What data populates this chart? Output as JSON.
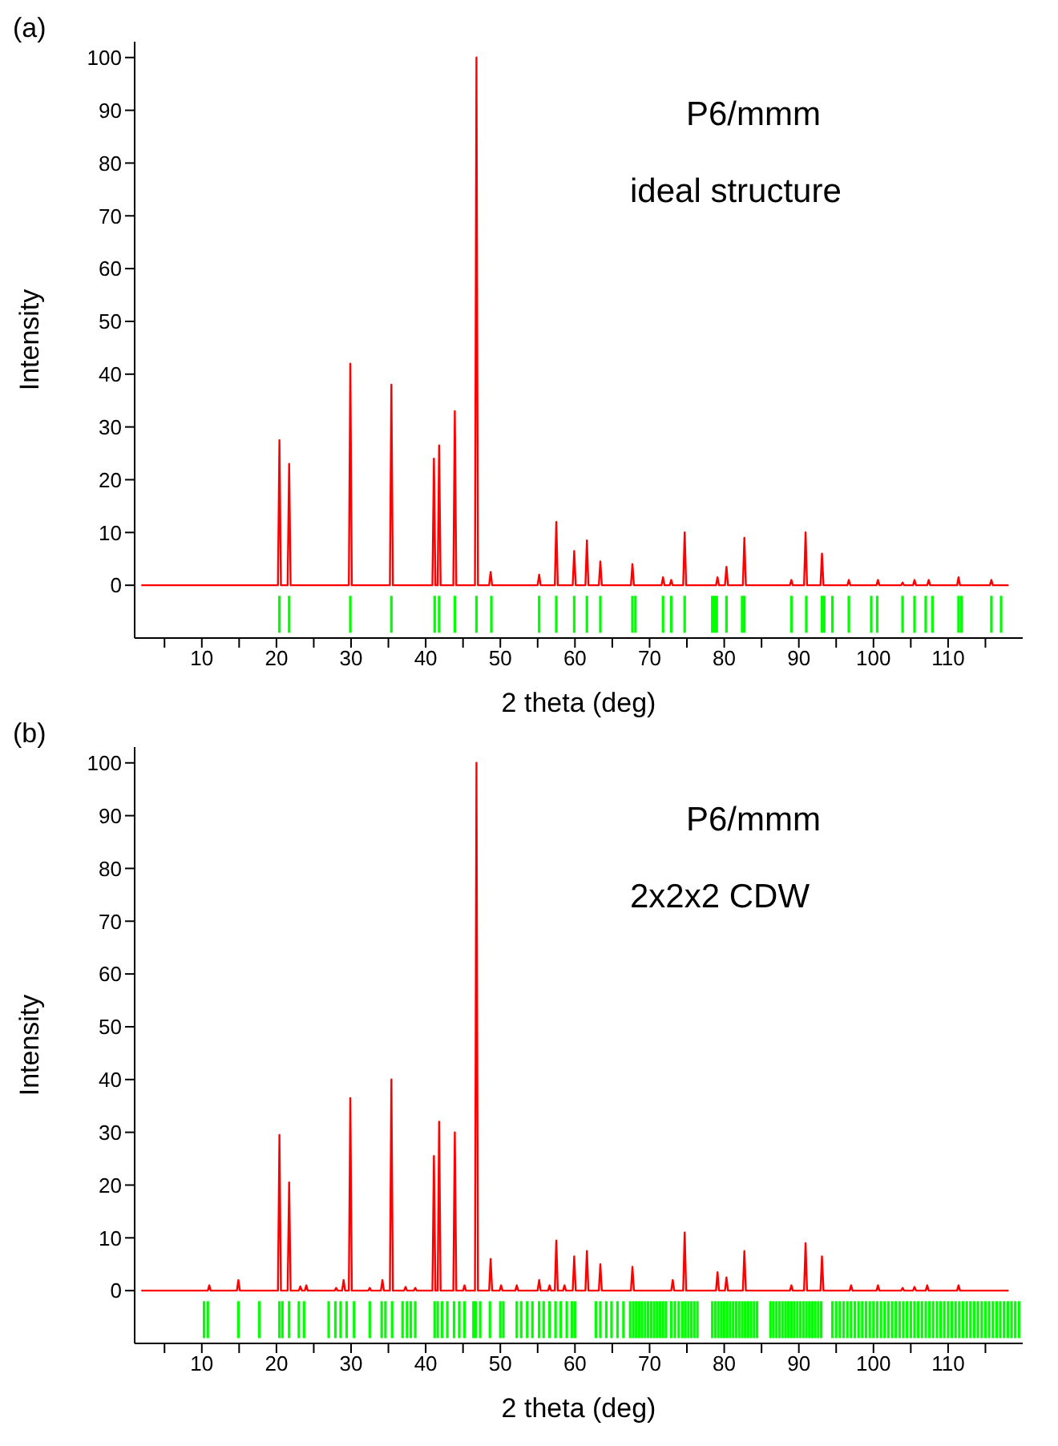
{
  "chart_data": [
    {
      "type": "line",
      "xlabel": "2 theta (deg)",
      "ylabel": "Intensity",
      "annotations": [
        "(a)",
        "P6/mmm",
        "ideal structure"
      ],
      "xlim": [
        1,
        120
      ],
      "ylim": [
        -10,
        103
      ],
      "xticks": [
        {
          "value": 5,
          "label": null
        },
        10,
        {
          "value": 15,
          "label": null
        },
        20,
        {
          "value": 25,
          "label": null
        },
        30,
        {
          "value": 35,
          "label": null
        },
        40,
        {
          "value": 45,
          "label": null
        },
        50,
        {
          "value": 55,
          "label": null
        },
        60,
        {
          "value": 65,
          "label": null
        },
        70,
        {
          "value": 75,
          "label": null
        },
        80,
        {
          "value": 85,
          "label": null
        },
        90,
        {
          "value": 95,
          "label": null
        },
        100,
        {
          "value": 105,
          "label": null
        },
        110,
        {
          "value": 115,
          "label": null
        }
      ],
      "yticks": [
        0,
        10,
        20,
        30,
        40,
        50,
        60,
        70,
        80,
        90,
        100
      ],
      "series": [
        {
          "color": "#ff0000",
          "x": [
            2,
            20.2,
            20.4,
            20.6,
            21.5,
            21.7,
            21.9,
            29.7,
            29.9,
            30.1,
            35.2,
            35.4,
            35.6,
            40.9,
            41.1,
            41.3,
            41.6,
            41.8,
            42.0,
            43.7,
            43.9,
            44.1,
            46.6,
            46.8,
            47.0,
            48.5,
            48.7,
            48.9,
            55.0,
            55.2,
            55.4,
            57.3,
            57.5,
            57.7,
            59.7,
            59.9,
            60.1,
            61.4,
            61.6,
            61.8,
            63.2,
            63.4,
            63.6,
            67.5,
            67.7,
            67.9,
            71.6,
            71.8,
            72.0,
            72.7,
            72.9,
            73.1,
            74.5,
            74.7,
            74.9,
            78.9,
            79.1,
            79.3,
            80.1,
            80.3,
            80.5,
            82.5,
            82.7,
            82.9,
            88.8,
            89.0,
            89.2,
            90.7,
            90.9,
            91.1,
            92.9,
            93.1,
            93.3,
            96.5,
            96.7,
            96.9,
            100.4,
            100.6,
            100.8,
            103.7,
            103.9,
            104.1,
            105.3,
            105.5,
            105.7,
            107.2,
            107.4,
            107.6,
            111.2,
            111.4,
            111.6,
            115.6,
            115.8,
            116.0,
            118
          ],
          "values": [
            0,
            0,
            27.5,
            0,
            0,
            23,
            0,
            0,
            42,
            0,
            0,
            38,
            0,
            0,
            24,
            0,
            0,
            26.5,
            0,
            0,
            33,
            0,
            0,
            100,
            0,
            0,
            2.5,
            0,
            0,
            2,
            0,
            0,
            12,
            0,
            0,
            6.5,
            0,
            0,
            8.5,
            0,
            0,
            4.5,
            0,
            0,
            4,
            0,
            0,
            1.5,
            0,
            0,
            1,
            0,
            0,
            10,
            0,
            0,
            1.5,
            0,
            0,
            3.5,
            0,
            0,
            9,
            0,
            0,
            1,
            0,
            0,
            10,
            0,
            0,
            6,
            0,
            0,
            1,
            0,
            0,
            1,
            0,
            0,
            0.5,
            0,
            0,
            1,
            0,
            0,
            1,
            0,
            0,
            1.5,
            0,
            0,
            1,
            0,
            0
          ]
        },
        {
          "type": "bar",
          "color": "#00ff00",
          "x": [
            20.4,
            21.7,
            29.9,
            35.4,
            41.2,
            41.8,
            43.9,
            46.8,
            48.8,
            55.2,
            57.5,
            59.9,
            61.6,
            63.4,
            67.7,
            68.1,
            71.8,
            72.9,
            74.7,
            78.4,
            78.7,
            79.0,
            80.3,
            82.4,
            82.7,
            89.0,
            91.0,
            93.1,
            93.4,
            94.5,
            96.7,
            99.7,
            100.5,
            103.9,
            105.5,
            107.0,
            107.9,
            111.4,
            111.8,
            115.8,
            117.1
          ],
          "base": [
            -9,
            -9,
            -9,
            -9,
            -9,
            -9,
            -9,
            -9,
            -9,
            -9,
            -9,
            -9,
            -9,
            -9,
            -9,
            -9,
            -9,
            -9,
            -9,
            -9,
            -9,
            -9,
            -9,
            -9,
            -9,
            -9,
            -9,
            -9,
            -9,
            -9,
            -9,
            -9,
            -9,
            -9,
            -9,
            -9,
            -9,
            -9,
            -9,
            -9,
            -9
          ],
          "values": [
            7,
            7,
            7,
            7,
            7,
            7,
            7,
            7,
            7,
            7,
            7,
            7,
            7,
            7,
            7,
            7,
            7,
            7,
            7,
            7,
            7,
            7,
            7,
            7,
            7,
            7,
            7,
            7,
            7,
            7,
            7,
            7,
            7,
            7,
            7,
            7,
            7,
            7,
            7,
            7,
            7
          ]
        }
      ]
    },
    {
      "type": "line",
      "xlabel": "2 theta (deg)",
      "ylabel": "Intensity",
      "annotations": [
        "(b)",
        "P6/mmm",
        "2x2x2 CDW"
      ],
      "xlim": [
        1,
        120
      ],
      "ylim": [
        -10,
        103
      ],
      "xticks": [
        {
          "value": 5,
          "label": null
        },
        10,
        {
          "value": 15,
          "label": null
        },
        20,
        {
          "value": 25,
          "label": null
        },
        30,
        {
          "value": 35,
          "label": null
        },
        40,
        {
          "value": 45,
          "label": null
        },
        50,
        {
          "value": 55,
          "label": null
        },
        60,
        {
          "value": 65,
          "label": null
        },
        70,
        {
          "value": 75,
          "label": null
        },
        80,
        {
          "value": 85,
          "label": null
        },
        90,
        {
          "value": 95,
          "label": null
        },
        100,
        {
          "value": 105,
          "label": null
        },
        110,
        {
          "value": 115,
          "label": null
        }
      ],
      "yticks": [
        0,
        10,
        20,
        30,
        40,
        50,
        60,
        70,
        80,
        90,
        100
      ],
      "series": [
        {
          "color": "#ff0000",
          "x": [
            2,
            10.8,
            11.0,
            11.2,
            14.7,
            14.9,
            15.1,
            20.2,
            20.4,
            20.6,
            21.5,
            21.7,
            21.9,
            23.0,
            23.2,
            23.4,
            23.8,
            24.0,
            24.2,
            27.8,
            28.0,
            28.2,
            28.8,
            29.0,
            29.2,
            29.7,
            29.9,
            30.1,
            32.3,
            32.5,
            32.7,
            34.0,
            34.2,
            34.4,
            35.2,
            35.4,
            35.6,
            37.1,
            37.3,
            37.5,
            38.4,
            38.6,
            38.8,
            40.9,
            41.1,
            41.3,
            41.6,
            41.8,
            42.0,
            43.7,
            43.9,
            44.1,
            45.0,
            45.2,
            45.4,
            46.6,
            46.8,
            47.0,
            48.5,
            48.7,
            48.9,
            49.9,
            50.1,
            50.3,
            52.0,
            52.2,
            52.4,
            55.0,
            55.2,
            55.4,
            56.4,
            56.6,
            56.8,
            57.3,
            57.5,
            57.7,
            58.4,
            58.6,
            58.8,
            59.7,
            59.9,
            60.1,
            61.4,
            61.6,
            61.8,
            63.2,
            63.4,
            63.6,
            67.5,
            67.7,
            67.9,
            72.9,
            73.1,
            73.3,
            74.5,
            74.7,
            74.9,
            78.9,
            79.1,
            79.3,
            80.1,
            80.3,
            80.5,
            82.5,
            82.7,
            82.9,
            88.8,
            89.0,
            89.2,
            90.7,
            90.9,
            91.1,
            92.9,
            93.1,
            93.3,
            96.8,
            97.0,
            97.2,
            100.4,
            100.6,
            100.8,
            103.7,
            103.9,
            104.1,
            105.3,
            105.5,
            105.7,
            107.0,
            107.2,
            107.4,
            111.2,
            111.4,
            111.6,
            118
          ],
          "values": [
            0,
            0,
            1,
            0,
            0,
            2,
            0,
            0,
            29.5,
            0,
            0,
            20.5,
            0,
            0,
            0.8,
            0,
            0,
            1,
            0,
            0,
            0.5,
            0,
            0,
            2,
            0,
            0,
            36.5,
            0,
            0,
            0.5,
            0,
            0,
            2,
            0,
            0,
            40,
            0,
            0,
            0.7,
            0,
            0,
            0.5,
            0,
            0,
            25.5,
            0,
            0,
            32,
            0,
            0,
            30,
            0,
            0,
            1,
            0,
            0,
            100,
            0,
            0,
            6,
            0,
            0,
            1,
            0,
            0,
            1,
            0,
            0,
            2,
            0,
            0,
            1,
            0,
            0,
            9.5,
            0,
            0,
            1,
            0,
            0,
            6.5,
            0,
            0,
            7.5,
            0,
            0,
            5,
            0,
            0,
            4.5,
            0,
            0,
            2,
            0,
            0,
            11,
            0,
            0,
            3.5,
            0,
            0,
            2.5,
            0,
            0,
            7.5,
            0,
            0,
            1,
            0,
            0,
            9,
            0,
            0,
            6.5,
            0,
            0,
            1,
            0,
            0,
            1,
            0,
            0,
            0.5,
            0,
            0,
            0.7,
            0,
            0,
            1,
            0,
            0,
            1,
            0,
            0
          ]
        },
        {
          "type": "bar",
          "color": "#00ff00",
          "x": [
            10.3,
            10.8,
            14.9,
            17.7,
            20.4,
            20.8,
            21.7,
            23.0,
            23.7,
            27.0,
            27.9,
            28.6,
            29.4,
            30.4,
            32.5,
            34.1,
            34.6,
            35.5,
            36.9,
            37.5,
            38.0,
            38.6,
            41.2,
            41.6,
            42.2,
            42.9,
            43.8,
            44.5,
            45.2,
            46.4,
            46.7,
            47.3,
            48.6,
            50.0,
            50.4,
            52.2,
            52.8,
            53.6,
            54.3,
            55.2,
            55.8,
            56.6,
            57.4,
            58.1,
            58.9,
            59.6,
            60.0,
            62.8,
            63.4,
            64.2,
            64.9,
            65.7,
            66.5,
            67.4,
            67.8,
            68.2,
            68.6,
            69.0,
            69.4,
            69.8,
            70.2,
            70.6,
            71.0,
            71.4,
            71.8,
            72.2,
            72.9,
            73.4,
            73.9,
            74.4,
            74.8,
            75.2,
            75.6,
            76.0,
            76.4,
            78.4,
            78.8,
            79.2,
            79.6,
            80.0,
            80.4,
            80.8,
            81.2,
            81.6,
            82.0,
            82.4,
            82.8,
            83.2,
            83.6,
            84.0,
            84.4,
            86.2,
            86.6,
            87.0,
            87.4,
            87.8,
            88.2,
            88.6,
            89.0,
            89.4,
            89.8,
            90.2,
            90.6,
            91.0,
            91.4,
            91.8,
            92.2,
            92.6,
            93.0,
            94.5,
            95.0,
            95.5,
            96.0,
            96.5,
            97.0,
            97.5,
            98.0,
            98.5,
            99.0,
            99.5,
            100.0,
            100.5,
            101.0,
            101.5,
            102.0,
            102.5,
            103.0,
            103.5,
            104.0,
            104.5,
            105.0,
            105.5,
            106.0,
            106.5,
            107.0,
            107.5,
            108.0,
            108.5,
            109.0,
            109.5,
            110.0,
            110.5,
            111.0,
            111.5,
            112.0,
            112.5,
            113.0,
            113.5,
            114.0,
            114.5,
            115.0,
            115.5,
            116.0,
            116.5,
            117.0,
            117.5,
            118.0,
            118.5,
            119.0,
            119.5
          ],
          "base": [
            -9,
            -9,
            -9,
            -9,
            -9,
            -9,
            -9,
            -9,
            -9,
            -9,
            -9,
            -9,
            -9,
            -9,
            -9,
            -9,
            -9,
            -9,
            -9,
            -9,
            -9,
            -9,
            -9,
            -9,
            -9,
            -9,
            -9,
            -9,
            -9,
            -9,
            -9,
            -9,
            -9,
            -9,
            -9,
            -9,
            -9,
            -9,
            -9,
            -9,
            -9,
            -9,
            -9,
            -9,
            -9,
            -9,
            -9,
            -9,
            -9,
            -9,
            -9,
            -9,
            -9,
            -9,
            -9,
            -9,
            -9,
            -9,
            -9,
            -9,
            -9,
            -9,
            -9,
            -9,
            -9,
            -9,
            -9,
            -9,
            -9,
            -9,
            -9,
            -9,
            -9,
            -9,
            -9,
            -9,
            -9,
            -9,
            -9,
            -9,
            -9,
            -9,
            -9,
            -9,
            -9,
            -9,
            -9,
            -9,
            -9,
            -9,
            -9,
            -9,
            -9,
            -9,
            -9,
            -9,
            -9,
            -9,
            -9,
            -9,
            -9,
            -9,
            -9,
            -9,
            -9,
            -9,
            -9,
            -9,
            -9,
            -9,
            -9,
            -9,
            -9,
            -9,
            -9,
            -9,
            -9,
            -9,
            -9,
            -9,
            -9,
            -9,
            -9,
            -9,
            -9,
            -9,
            -9,
            -9,
            -9,
            -9,
            -9,
            -9,
            -9,
            -9,
            -9,
            -9,
            -9,
            -9,
            -9,
            -9,
            -9,
            -9,
            -9,
            -9,
            -9,
            -9,
            -9,
            -9,
            -9,
            -9,
            -9,
            -9,
            -9,
            -9,
            -9,
            -9,
            -9,
            -9,
            -9,
            -9
          ],
          "values": [
            7,
            7,
            7,
            7,
            7,
            7,
            7,
            7,
            7,
            7,
            7,
            7,
            7,
            7,
            7,
            7,
            7,
            7,
            7,
            7,
            7,
            7,
            7,
            7,
            7,
            7,
            7,
            7,
            7,
            7,
            7,
            7,
            7,
            7,
            7,
            7,
            7,
            7,
            7,
            7,
            7,
            7,
            7,
            7,
            7,
            7,
            7,
            7,
            7,
            7,
            7,
            7,
            7,
            7,
            7,
            7,
            7,
            7,
            7,
            7,
            7,
            7,
            7,
            7,
            7,
            7,
            7,
            7,
            7,
            7,
            7,
            7,
            7,
            7,
            7,
            7,
            7,
            7,
            7,
            7,
            7,
            7,
            7,
            7,
            7,
            7,
            7,
            7,
            7,
            7,
            7,
            7,
            7,
            7,
            7,
            7,
            7,
            7,
            7,
            7,
            7,
            7,
            7,
            7,
            7,
            7,
            7,
            7,
            7,
            7,
            7,
            7,
            7,
            7,
            7,
            7,
            7,
            7,
            7,
            7,
            7,
            7,
            7,
            7,
            7,
            7,
            7,
            7,
            7,
            7,
            7,
            7,
            7,
            7,
            7,
            7,
            7,
            7,
            7,
            7,
            7,
            7,
            7,
            7,
            7,
            7,
            7,
            7,
            7,
            7,
            7,
            7,
            7,
            7,
            7,
            7,
            7,
            7,
            7,
            7
          ]
        }
      ]
    }
  ]
}
